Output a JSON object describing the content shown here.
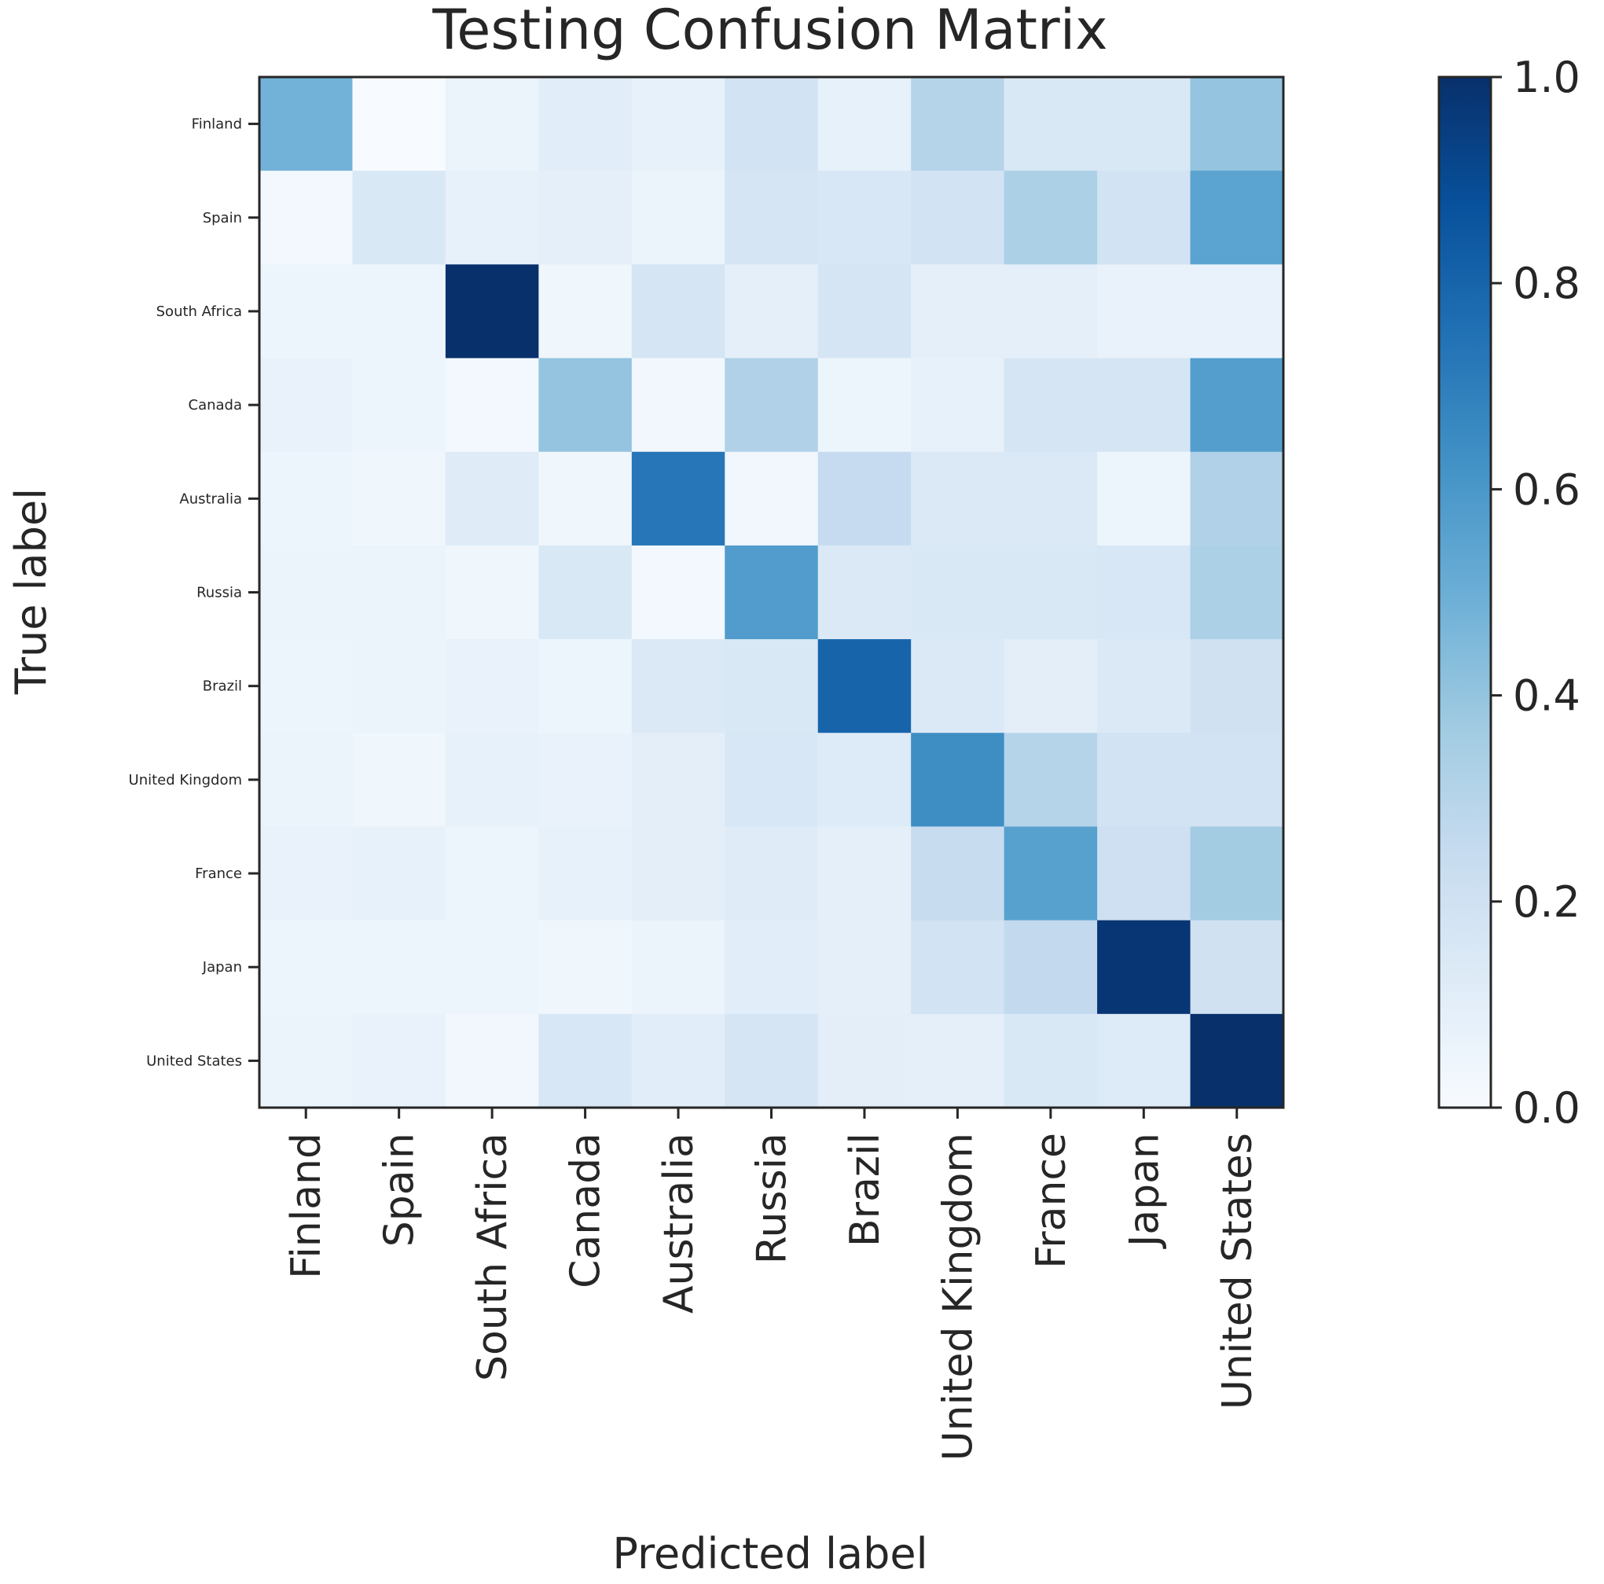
{
  "chart_data": {
    "type": "heatmap",
    "title": "Testing Confusion Matrix",
    "xlabel": "Predicted label",
    "ylabel": "True label",
    "x_categories": [
      "Finland",
      "Spain",
      "South Africa",
      "Canada",
      "Australia",
      "Russia",
      "Brazil",
      "United Kingdom",
      "France",
      "Japan",
      "United States"
    ],
    "y_categories": [
      "Finland",
      "Spain",
      "South Africa",
      "Canada",
      "Australia",
      "Russia",
      "Brazil",
      "United Kingdom",
      "France",
      "Japan",
      "United States"
    ],
    "values": [
      [
        0.48,
        0.0,
        0.06,
        0.11,
        0.08,
        0.19,
        0.08,
        0.3,
        0.15,
        0.15,
        0.4
      ],
      [
        0.02,
        0.15,
        0.08,
        0.09,
        0.06,
        0.17,
        0.16,
        0.19,
        0.33,
        0.19,
        0.55
      ],
      [
        0.05,
        0.05,
        1.0,
        0.04,
        0.17,
        0.09,
        0.17,
        0.09,
        0.09,
        0.07,
        0.07
      ],
      [
        0.07,
        0.05,
        0.02,
        0.4,
        0.03,
        0.32,
        0.05,
        0.08,
        0.17,
        0.17,
        0.57
      ],
      [
        0.05,
        0.04,
        0.12,
        0.04,
        0.73,
        0.03,
        0.25,
        0.14,
        0.14,
        0.05,
        0.32
      ],
      [
        0.06,
        0.06,
        0.04,
        0.15,
        0.02,
        0.58,
        0.14,
        0.15,
        0.15,
        0.16,
        0.33
      ],
      [
        0.05,
        0.06,
        0.07,
        0.05,
        0.14,
        0.15,
        0.8,
        0.14,
        0.1,
        0.14,
        0.2
      ],
      [
        0.06,
        0.04,
        0.08,
        0.07,
        0.1,
        0.16,
        0.13,
        0.64,
        0.3,
        0.19,
        0.19
      ],
      [
        0.07,
        0.08,
        0.05,
        0.08,
        0.1,
        0.12,
        0.09,
        0.24,
        0.56,
        0.21,
        0.36
      ],
      [
        0.05,
        0.05,
        0.05,
        0.04,
        0.06,
        0.11,
        0.09,
        0.19,
        0.26,
        0.98,
        0.2
      ],
      [
        0.06,
        0.07,
        0.03,
        0.16,
        0.11,
        0.17,
        0.1,
        0.09,
        0.15,
        0.13,
        1.0
      ]
    ],
    "colorbar": {
      "range": [
        0.0,
        1.0
      ],
      "ticks": [
        "0.0",
        "0.2",
        "0.4",
        "0.6",
        "0.8",
        "1.0"
      ],
      "colormap": "Blues",
      "color_low": "#f7fbff",
      "color_high": "#08306b"
    },
    "grid": false
  }
}
